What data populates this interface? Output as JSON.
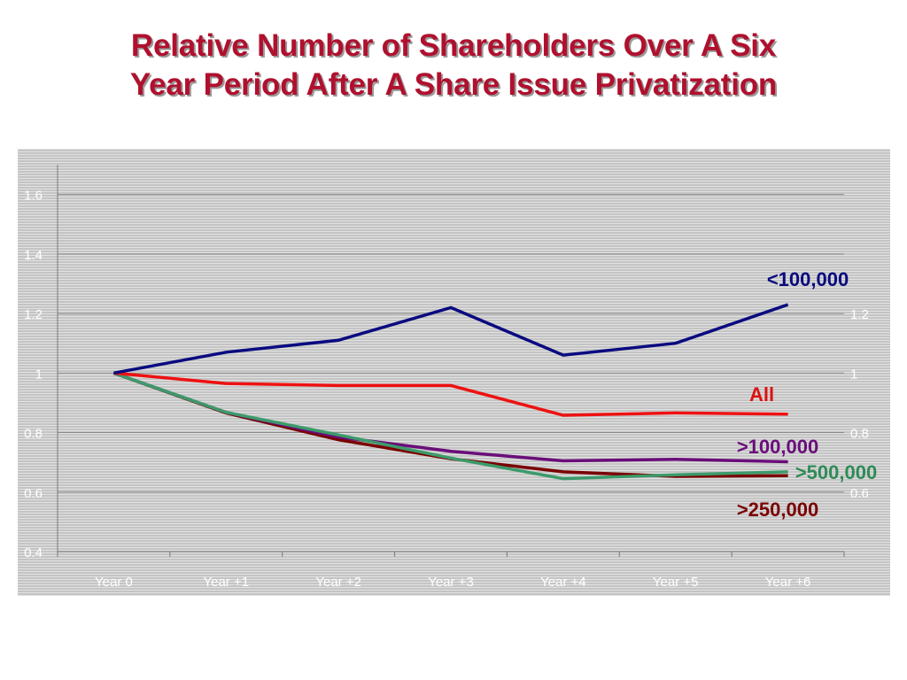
{
  "title_line1": "Relative Number of Shareholders Over A Six",
  "title_line2": "Year Period After A Share Issue Privatization",
  "chart_data": {
    "type": "line",
    "title": "Relative Number of Shareholders Over A Six Year Period After A Share Issue Privatization",
    "categories": [
      "Year 0",
      "Year +1",
      "Year +2",
      "Year +3",
      "Year +4",
      "Year +5",
      "Year +6"
    ],
    "ylim": [
      0.4,
      1.7
    ],
    "left_ticks": [
      "0.4",
      "0.6",
      "0.8",
      "1",
      "1.2",
      "1.4",
      "1.6"
    ],
    "right_ticks": [
      "0.6",
      "0.8",
      "1",
      "1.2"
    ],
    "grid": true,
    "series": [
      {
        "name": "<100,000",
        "color": "#0a0a80",
        "label_color": "#0a0a80",
        "values": [
          1.0,
          1.07,
          1.11,
          1.22,
          1.06,
          1.1,
          1.23
        ]
      },
      {
        "name": "All",
        "color": "#ee1111",
        "label_color": "#dd1111",
        "values": [
          1.0,
          0.965,
          0.958,
          0.958,
          0.858,
          0.866,
          0.862
        ]
      },
      {
        "name": ">100,000",
        "color": "#6a0d7a",
        "label_color": "#6a0d7a",
        "values": [
          1.0,
          0.868,
          0.785,
          0.737,
          0.705,
          0.71,
          0.702
        ]
      },
      {
        "name": ">250,000",
        "color": "#7a0000",
        "label_color": "#7a0000",
        "values": [
          1.0,
          0.866,
          0.776,
          0.712,
          0.668,
          0.653,
          0.655
        ]
      },
      {
        "name": ">500,000",
        "color": "#3c9a6a",
        "label_color": "#2e8b57",
        "values": [
          1.0,
          0.868,
          0.792,
          0.714,
          0.645,
          0.658,
          0.668
        ]
      }
    ]
  }
}
